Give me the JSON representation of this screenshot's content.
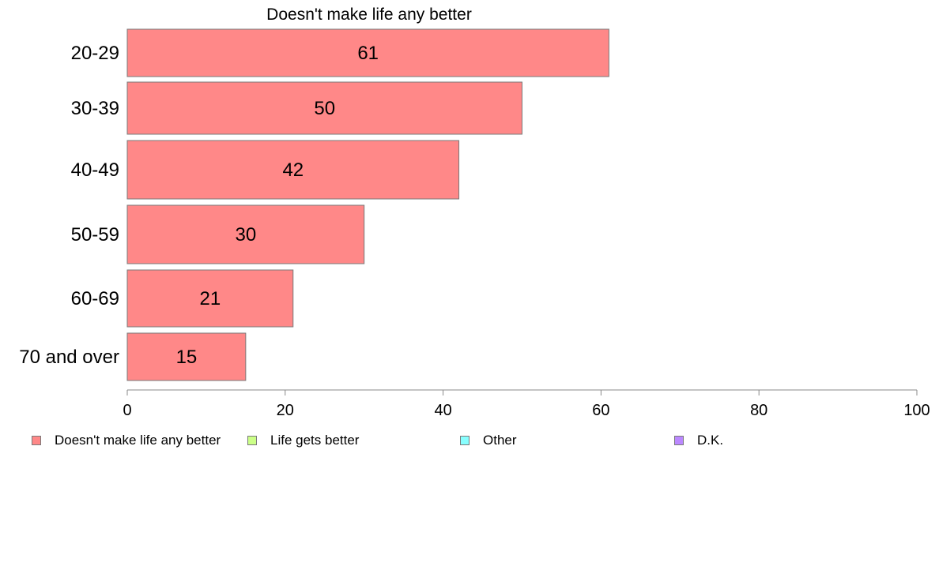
{
  "chart_data": {
    "type": "bar",
    "orientation": "horizontal",
    "title": "Doesn't make life any better",
    "categories": [
      "20-29",
      "30-39",
      "40-49",
      "50-59",
      "60-69",
      "70 and over"
    ],
    "series": [
      {
        "name": "Doesn't make life any better",
        "color": "#ff8888",
        "values": [
          61,
          50,
          42,
          30,
          21,
          15
        ]
      }
    ],
    "data_labels": [
      "61",
      "50",
      "42",
      "30",
      "21",
      "15"
    ],
    "xlim": [
      0,
      100
    ],
    "x_ticks": [
      0,
      20,
      40,
      60,
      80,
      100
    ],
    "x_tick_labels": [
      "0",
      "20",
      "40",
      "60",
      "80",
      "100"
    ],
    "grid": false,
    "legend_position": "bottom"
  },
  "legend": {
    "items": [
      {
        "label": "Doesn't make life any better",
        "color": "#ff8888"
      },
      {
        "label": "Life gets better",
        "color": "#ccff88"
      },
      {
        "label": "Other",
        "color": "#88ffff"
      },
      {
        "label": "D.K.",
        "color": "#bb88ff"
      }
    ]
  },
  "colors": {
    "bar_edge": "#7a7a7a",
    "axis": "#888888"
  }
}
